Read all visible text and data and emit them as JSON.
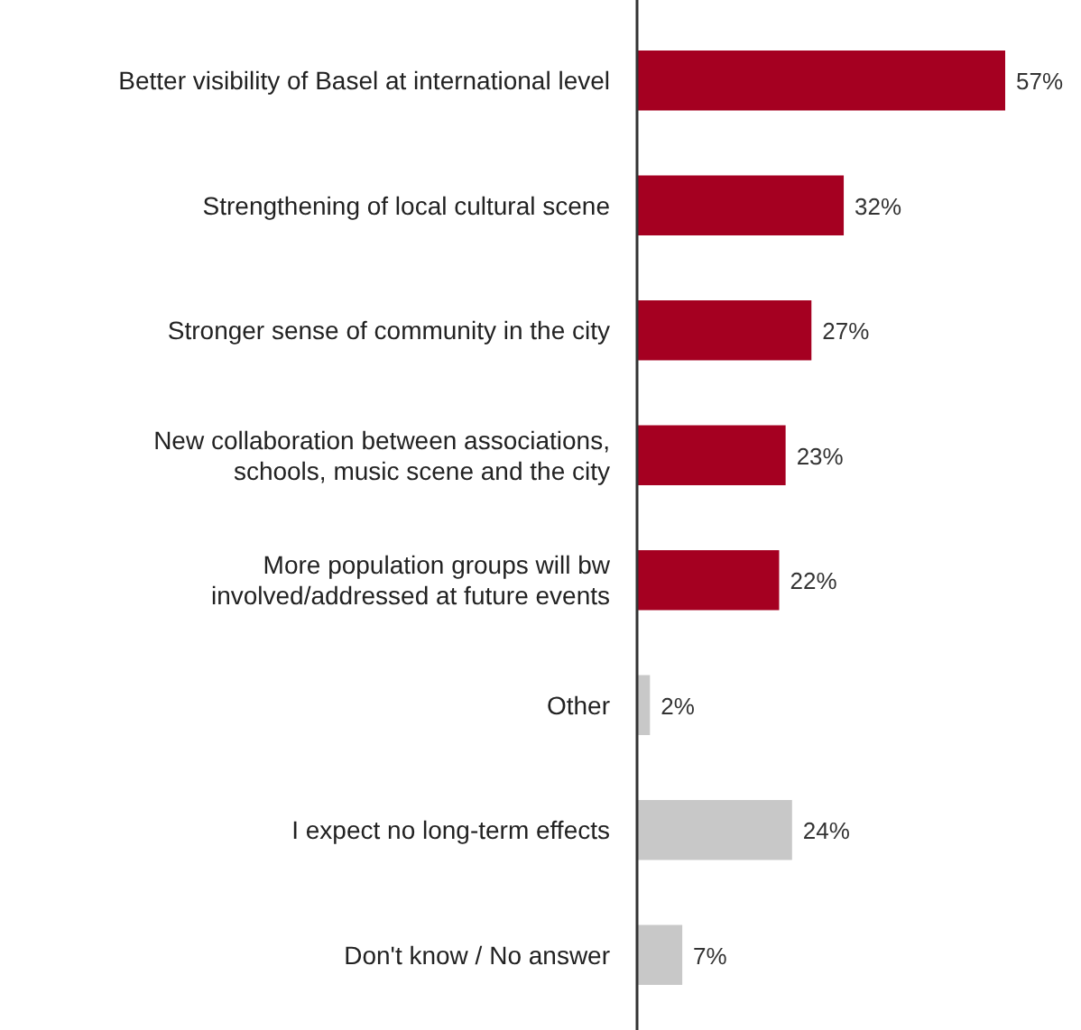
{
  "chart_data": {
    "type": "bar",
    "orientation": "horizontal",
    "categories": [
      "Better visibility of Basel at international level",
      "Strengthening of local cultural scene",
      "Stronger sense of community in the city",
      "New collaboration between associations,\nschools, music scene and the city",
      "More population groups will bw\ninvolved/addressed at future events",
      "Other",
      "I expect no long-term effects",
      "Don't know / No answer"
    ],
    "values": [
      57,
      32,
      27,
      23,
      22,
      2,
      24,
      7
    ],
    "value_labels": [
      "57%",
      "32%",
      "27%",
      "23%",
      "22%",
      "2%",
      "24%",
      "7%"
    ],
    "colors": [
      "#a50021",
      "#a50021",
      "#a50021",
      "#a50021",
      "#a50021",
      "#c8c8c8",
      "#c8c8c8",
      "#c8c8c8"
    ]
  }
}
